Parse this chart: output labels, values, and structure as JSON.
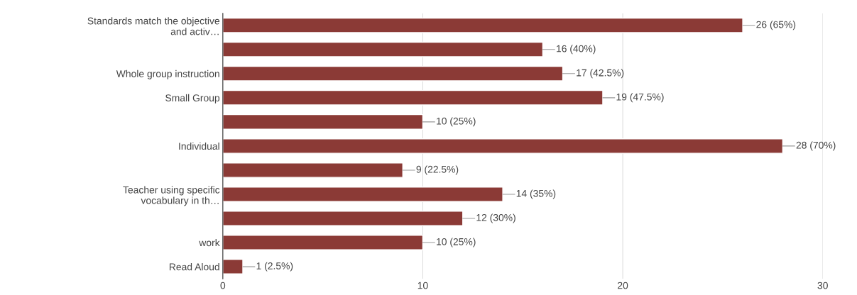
{
  "chart_data": {
    "type": "bar",
    "orientation": "horizontal",
    "categories": [
      "Standards match the objective\nand activ…",
      null,
      "Whole group instruction",
      "Small Group",
      null,
      "Individual",
      null,
      "Teacher using specific\nvocabulary in th…",
      null,
      "work",
      "Read Aloud"
    ],
    "values": [
      26,
      16,
      17,
      19,
      10,
      28,
      9,
      14,
      12,
      10,
      1
    ],
    "value_labels": [
      "26 (65%)",
      "16 (40%)",
      "17 (42.5%)",
      "19 (47.5%)",
      "10 (25%)",
      "28 (70%)",
      "9 (22.5%)",
      "14 (35%)",
      "12 (30%)",
      "10 (25%)",
      "1 (2.5%)"
    ],
    "color": "#8b3a36",
    "xlim": [
      0,
      30
    ],
    "xticks": [
      0,
      10,
      20,
      30
    ],
    "grid": "x",
    "legend": false
  }
}
